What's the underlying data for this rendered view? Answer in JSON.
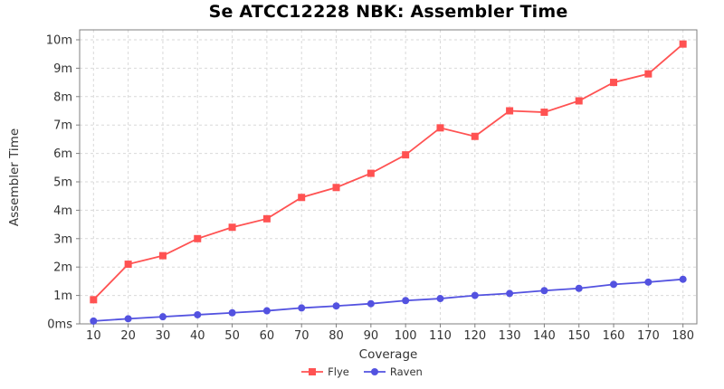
{
  "chart_data": {
    "type": "line",
    "title": "Se ATCC12228 NBK: Assembler Time",
    "xlabel": "Coverage",
    "ylabel": "Assembler Time",
    "x": [
      10,
      20,
      30,
      40,
      50,
      60,
      70,
      80,
      90,
      100,
      110,
      120,
      130,
      140,
      150,
      160,
      170,
      180
    ],
    "x_ticks": [
      10,
      20,
      30,
      40,
      50,
      60,
      70,
      80,
      90,
      100,
      110,
      120,
      130,
      140,
      150,
      160,
      170,
      180
    ],
    "y_ticks": [
      {
        "value": 0,
        "label": "0ms"
      },
      {
        "value": 1,
        "label": "1m"
      },
      {
        "value": 2,
        "label": "2m"
      },
      {
        "value": 3,
        "label": "3m"
      },
      {
        "value": 4,
        "label": "4m"
      },
      {
        "value": 5,
        "label": "5m"
      },
      {
        "value": 6,
        "label": "6m"
      },
      {
        "value": 7,
        "label": "7m"
      },
      {
        "value": 8,
        "label": "8m"
      },
      {
        "value": 9,
        "label": "9m"
      },
      {
        "value": 10,
        "label": "10m"
      }
    ],
    "x_range": [
      6,
      184
    ],
    "y_range": [
      0,
      10.35
    ],
    "y_unit": "minutes",
    "grid": "dashed",
    "legend_position": "bottom-center",
    "colors": {
      "flye": "#ff5252",
      "raven": "#5352e0",
      "gridline": "#d9d9d9",
      "plot_border": "#7f7f7f",
      "tick_label": "#333333"
    },
    "series": [
      {
        "name": "Flye",
        "color": "#ff5252",
        "marker": "square",
        "values": [
          0.85,
          2.1,
          2.4,
          3.0,
          3.4,
          3.7,
          4.45,
          4.8,
          5.3,
          5.95,
          6.9,
          6.6,
          7.5,
          7.45,
          7.85,
          8.5,
          8.8,
          9.85
        ]
      },
      {
        "name": "Raven",
        "color": "#5352e0",
        "marker": "circle",
        "values": [
          0.1,
          0.18,
          0.25,
          0.32,
          0.39,
          0.46,
          0.56,
          0.63,
          0.71,
          0.82,
          0.89,
          1.0,
          1.07,
          1.17,
          1.25,
          1.39,
          1.47,
          1.57
        ]
      }
    ]
  }
}
